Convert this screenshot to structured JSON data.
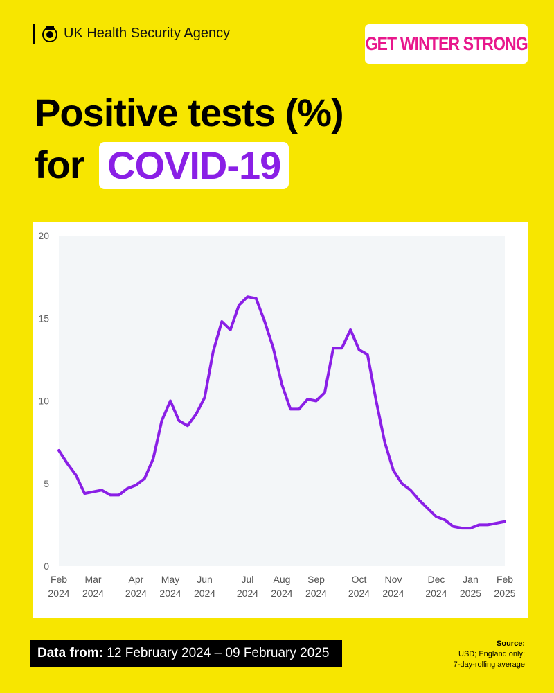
{
  "header": {
    "agency": "UK Health Security Agency",
    "campaign": "GET WINTER STRONG",
    "title": "Positive tests (%)",
    "title_prefix": "for",
    "title_highlight": "COVID-19"
  },
  "chart_data": {
    "type": "line",
    "categories": [
      "Feb 2024",
      null,
      null,
      null,
      "Mar 2024",
      null,
      null,
      null,
      null,
      "Apr 2024",
      null,
      null,
      null,
      "May 2024",
      null,
      null,
      null,
      "Jun 2024",
      null,
      null,
      null,
      null,
      "Jul 2024",
      null,
      null,
      null,
      "Aug 2024",
      null,
      null,
      null,
      "Sep 2024",
      null,
      null,
      null,
      null,
      "Oct 2024",
      null,
      null,
      null,
      "Nov 2024",
      null,
      null,
      null,
      null,
      "Dec 2024",
      null,
      null,
      null,
      "Jan 2025",
      null,
      null,
      null,
      "Feb 2025"
    ],
    "values": [
      7.0,
      6.2,
      5.5,
      4.4,
      4.5,
      4.6,
      4.3,
      4.3,
      4.7,
      4.9,
      5.3,
      6.5,
      8.8,
      10.0,
      8.8,
      8.5,
      9.2,
      10.2,
      13.0,
      14.8,
      14.3,
      15.8,
      16.3,
      16.2,
      14.8,
      13.2,
      11.0,
      9.5,
      9.5,
      10.1,
      10.0,
      10.5,
      13.2,
      13.2,
      14.3,
      13.1,
      12.8,
      10.0,
      7.5,
      5.8,
      5.0,
      4.6,
      4.0,
      3.5,
      3.0,
      2.8,
      2.4,
      2.3,
      2.3,
      2.5,
      2.5,
      2.6,
      2.7
    ],
    "color": "#8a1fe6",
    "ylim": [
      0,
      20
    ],
    "yticks": [
      0,
      5,
      10,
      15,
      20
    ]
  },
  "footer": {
    "data_label": "Data from:",
    "date_range": "12 February 2024 – 09 February 2025",
    "source_label": "Source:",
    "source_lines": [
      "USD; England only;",
      "7-day-rolling average"
    ]
  }
}
